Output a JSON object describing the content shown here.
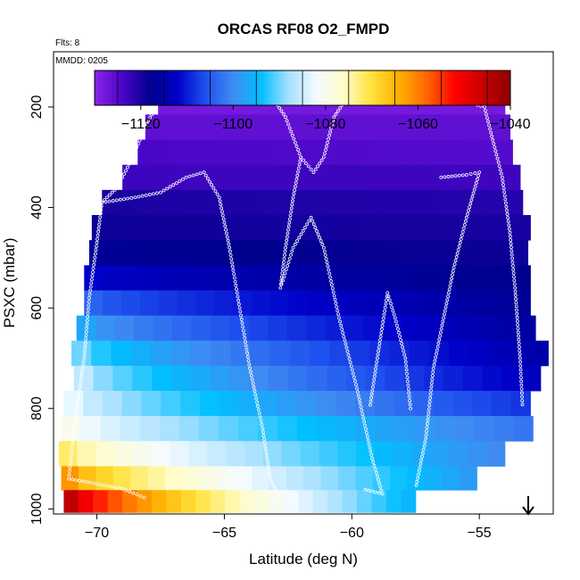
{
  "chart_data": {
    "type": "heatmap",
    "title": "ORCAS RF08 O2_FMPD",
    "subtitle": "Flts: 8",
    "annotation": "MMDD: 0205",
    "xlabel": "Latitude (deg N)",
    "ylabel": "PSXC (mbar)",
    "xlim": [
      -71.7,
      -52.1
    ],
    "ylim": [
      1010,
      90
    ],
    "y_reversed": true,
    "x_ticks": [
      -70,
      -65,
      -60,
      -55
    ],
    "y_ticks": [
      200,
      400,
      600,
      800,
      1000
    ],
    "colorbar": {
      "range": [
        -1130,
        -1040
      ],
      "ticks": [
        -1120,
        -1100,
        -1080,
        -1060,
        -1040
      ],
      "colors": [
        "#8b23e8",
        "#4a06c8",
        "#00008e",
        "#0000c8",
        "#1e50ee",
        "#3f8bf2",
        "#00bfff",
        "#a6e0ff",
        "#f4fbff",
        "#fffcc8",
        "#ffe23a",
        "#ffad00",
        "#ff6500",
        "#ff0000",
        "#c80000",
        "#8b0000"
      ],
      "dividers": [
        -1125,
        -1115,
        -1105,
        -1095,
        -1085,
        -1075,
        -1065,
        -1055,
        -1045
      ]
    },
    "bands": [
      {
        "p": 190,
        "left": -67.6,
        "right": -54.0,
        "vL": -1128,
        "vR": -1128
      },
      {
        "p": 240,
        "left": -68.1,
        "right": -53.8,
        "vL": -1126,
        "vR": -1126
      },
      {
        "p": 290,
        "left": -68.4,
        "right": -53.7,
        "vL": -1124,
        "vR": -1125
      },
      {
        "p": 340,
        "left": -69.0,
        "right": -53.4,
        "vL": -1123,
        "vR": -1123
      },
      {
        "p": 390,
        "left": -69.8,
        "right": -53.3,
        "vL": -1120,
        "vR": -1121
      },
      {
        "p": 440,
        "left": -70.2,
        "right": -53.0,
        "vL": -1119,
        "vR": -1120
      },
      {
        "p": 490,
        "left": -70.3,
        "right": -53.1,
        "vL": -1117,
        "vR": -1119
      },
      {
        "p": 540,
        "left": -70.5,
        "right": -53.0,
        "vL": -1112,
        "vR": -1118
      },
      {
        "p": 590,
        "left": -70.5,
        "right": -53.0,
        "vL": -1104,
        "vR": -1117
      },
      {
        "p": 640,
        "left": -70.8,
        "right": -52.8,
        "vL": -1097,
        "vR": -1116
      },
      {
        "p": 690,
        "left": -71.0,
        "right": -52.3,
        "vL": -1090,
        "vR": -1115
      },
      {
        "p": 740,
        "left": -70.9,
        "right": -52.6,
        "vL": -1086,
        "vR": -1113
      },
      {
        "p": 790,
        "left": -71.3,
        "right": -53.0,
        "vL": -1083,
        "vR": -1108
      },
      {
        "p": 840,
        "left": -71.4,
        "right": -52.9,
        "vL": -1080,
        "vR": -1102
      },
      {
        "p": 890,
        "left": -71.5,
        "right": -54.0,
        "vL": -1072,
        "vR": -1100
      },
      {
        "p": 940,
        "left": -71.4,
        "right": -55.1,
        "vL": -1062,
        "vR": -1098
      },
      {
        "p": 985,
        "left": -71.3,
        "right": -57.5,
        "vL": -1045,
        "vR": -1095
      }
    ],
    "flight_track": [
      {
        "name": "track-1",
        "points": [
          [
            -67.6,
            190
          ],
          [
            -64,
            190
          ],
          [
            -63,
            190
          ],
          [
            -62.6,
            220
          ],
          [
            -62.0,
            300
          ],
          [
            -61.5,
            330
          ],
          [
            -61.1,
            300
          ],
          [
            -60.7,
            220
          ],
          [
            -60.3,
            190
          ],
          [
            -57,
            190
          ],
          [
            -55.5,
            190
          ],
          [
            -54.8,
            200
          ],
          [
            -54.4,
            280
          ],
          [
            -54.1,
            340
          ],
          [
            -53.8,
            450
          ],
          [
            -53.6,
            560
          ],
          [
            -53.4,
            700
          ],
          [
            -53.3,
            800
          ]
        ]
      },
      {
        "name": "track-2",
        "points": [
          [
            -67.6,
            190
          ],
          [
            -68.1,
            240
          ],
          [
            -68.6,
            300
          ],
          [
            -69.2,
            360
          ],
          [
            -69.8,
            390
          ],
          [
            -70.0,
            470
          ],
          [
            -70.3,
            580
          ],
          [
            -70.5,
            700
          ],
          [
            -70.9,
            840
          ],
          [
            -71.1,
            940
          ],
          [
            -70,
            950
          ],
          [
            -69,
            960
          ],
          [
            -68,
            980
          ]
        ]
      },
      {
        "name": "track-3",
        "points": [
          [
            -69.8,
            390
          ],
          [
            -68.5,
            380
          ],
          [
            -67.5,
            370
          ],
          [
            -66.5,
            340
          ],
          [
            -65.8,
            330
          ],
          [
            -65.2,
            380
          ],
          [
            -64.8,
            480
          ],
          [
            -64.4,
            600
          ],
          [
            -64.0,
            720
          ],
          [
            -63.5,
            840
          ],
          [
            -63.2,
            940
          ],
          [
            -62.8,
            980
          ]
        ]
      },
      {
        "name": "track-4",
        "points": [
          [
            -62.0,
            300
          ],
          [
            -62.3,
            380
          ],
          [
            -62.6,
            480
          ],
          [
            -62.8,
            560
          ],
          [
            -62.3,
            480
          ],
          [
            -61.6,
            420
          ],
          [
            -61.1,
            480
          ],
          [
            -60.5,
            620
          ],
          [
            -59.8,
            760
          ],
          [
            -59.2,
            900
          ],
          [
            -58.8,
            970
          ],
          [
            -59.6,
            960
          ]
        ]
      },
      {
        "name": "track-5",
        "points": [
          [
            -57.7,
            800
          ],
          [
            -57.9,
            700
          ],
          [
            -58.3,
            620
          ],
          [
            -58.6,
            570
          ],
          [
            -59.0,
            700
          ],
          [
            -59.3,
            800
          ]
        ]
      },
      {
        "name": "track-6",
        "points": [
          [
            -56.5,
            340
          ],
          [
            -55.5,
            335
          ],
          [
            -55.0,
            330
          ],
          [
            -55.5,
            420
          ],
          [
            -56.0,
            520
          ],
          [
            -56.4,
            620
          ],
          [
            -56.8,
            720
          ],
          [
            -57.1,
            860
          ],
          [
            -57.5,
            960
          ]
        ]
      }
    ]
  },
  "arrow_label": ""
}
